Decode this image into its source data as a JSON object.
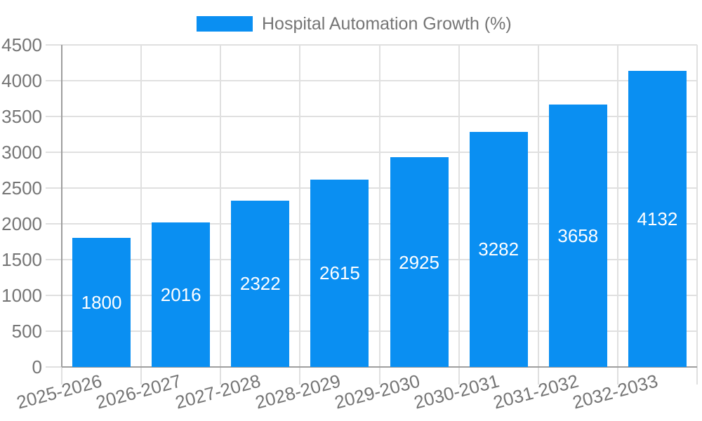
{
  "legend": {
    "label": "Hospital Automation Growth (%)"
  },
  "chart_data": {
    "type": "bar",
    "title": "",
    "series_name": "Hospital Automation Growth (%)",
    "categories": [
      "2025-2026",
      "2026-2027",
      "2027-2028",
      "2028-2029",
      "2029-2030",
      "2030-2031",
      "2031-2032",
      "2032-2033"
    ],
    "values": [
      1800,
      2016,
      2322,
      2615,
      2925,
      3282,
      3658,
      4132
    ],
    "xlabel": "",
    "ylabel": "",
    "ylim": [
      0,
      4500
    ],
    "yticks": [
      0,
      500,
      1000,
      1500,
      2000,
      2500,
      3000,
      3500,
      4000,
      4500
    ],
    "grid": true,
    "legend_position": "top-center",
    "x_label_rotation_deg": -15
  },
  "colors": {
    "bar": "#0a8ff2",
    "grid": "#e0e0e0",
    "axis": "#9e9e9e",
    "text": "#757575",
    "value_label": "#ffffff",
    "background": "#ffffff"
  }
}
